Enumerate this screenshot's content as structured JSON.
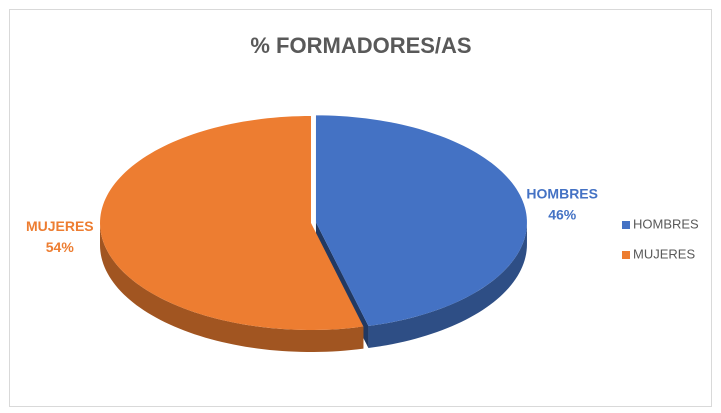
{
  "chart_data": {
    "type": "pie",
    "title": "% FORMADORES/AS",
    "categories": [
      "HOMBRES",
      "MUJERES"
    ],
    "values": [
      46,
      54
    ],
    "value_labels": [
      "46%",
      "54%"
    ],
    "colors": [
      "#4472c4",
      "#ed7d31"
    ],
    "legend": "right"
  }
}
